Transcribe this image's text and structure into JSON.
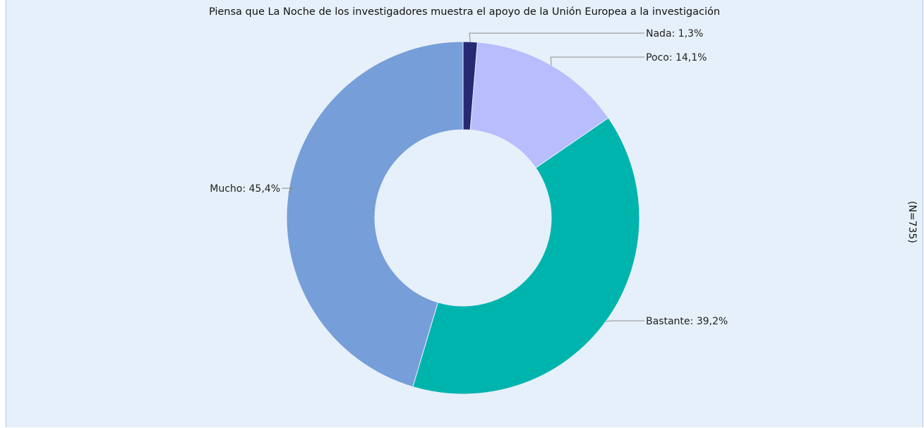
{
  "chart_data": {
    "type": "pie",
    "donut": true,
    "title": "Piensa que La Noche de los investigadores muestra el apoyo de la Unión Europea a la investigación",
    "note": "(N=735)",
    "slices": [
      {
        "label": "Nada",
        "value": 1.3,
        "display": "Nada: 1,3%",
        "color": "#262a72"
      },
      {
        "label": "Poco",
        "value": 14.1,
        "display": "Poco: 14,1%",
        "color": "#b7bdfd"
      },
      {
        "label": "Bastante",
        "value": 39.2,
        "display": "Bastante: 39,2%",
        "color": "#00b4ae"
      },
      {
        "label": "Mucho",
        "value": 45.4,
        "display": "Mucho: 45,4%",
        "color": "#769ed9"
      }
    ],
    "start": "top",
    "direction": "clockwise",
    "leader_line_color": "#8c8c8c"
  }
}
